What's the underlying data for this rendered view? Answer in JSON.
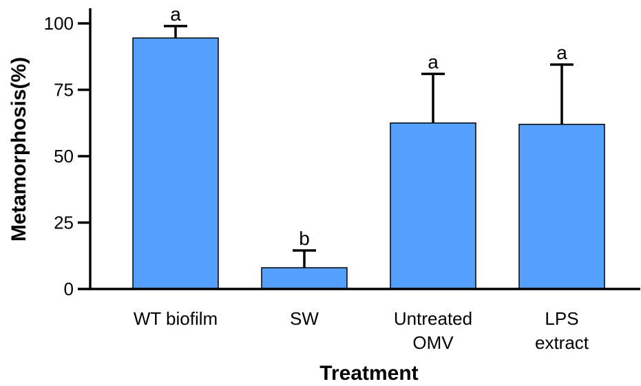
{
  "chart_data": {
    "type": "bar",
    "title": "",
    "xlabel": "Treatment",
    "ylabel": "Metamorphosis(%)",
    "ylim": [
      0,
      100
    ],
    "yticks": [
      0,
      25,
      50,
      75,
      100
    ],
    "categories": [
      [
        "WT biofilm"
      ],
      [
        "SW"
      ],
      [
        "Untreated",
        "OMV"
      ],
      [
        "LPS",
        "extract"
      ]
    ],
    "values": [
      94.5,
      8,
      62.5,
      62
    ],
    "error_upper": [
      4.5,
      6.5,
      18.5,
      22.5
    ],
    "significance_letters": [
      "a",
      "b",
      "a",
      "a"
    ],
    "grid": false,
    "legend": "none",
    "bar_color": "#559fff",
    "bar_edge_color": "#000000"
  }
}
